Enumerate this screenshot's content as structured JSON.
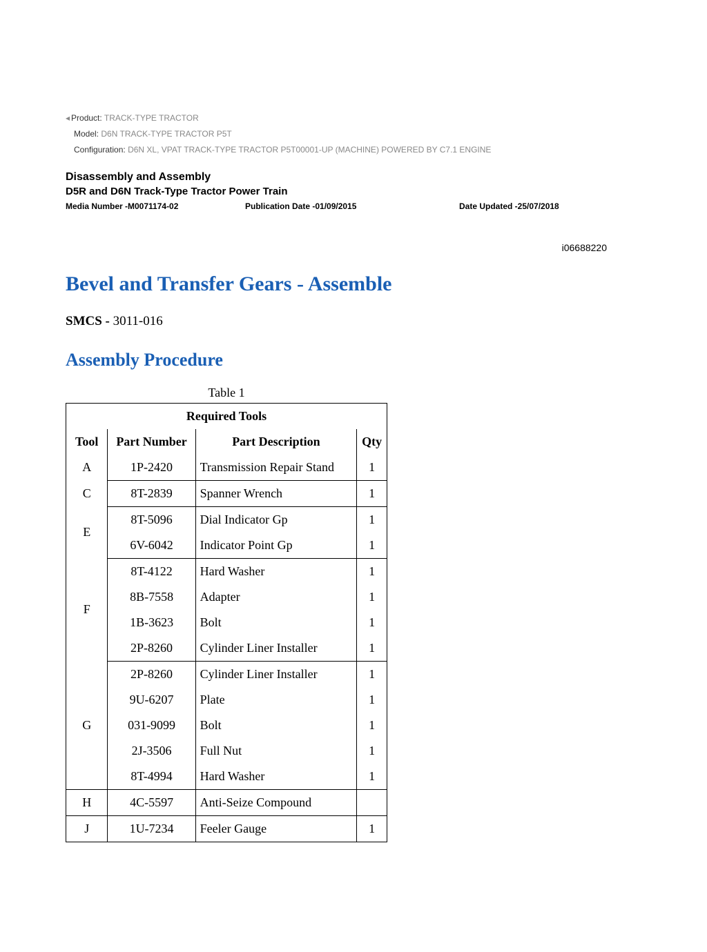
{
  "product_info": {
    "product_label": "Product:",
    "product_value": "TRACK-TYPE TRACTOR",
    "model_label": "Model:",
    "model_value": "D6N TRACK-TYPE TRACTOR P5T",
    "config_label": "Configuration:",
    "config_value": "D6N XL, VPAT TRACK-TYPE TRACTOR P5T00001-UP (MACHINE) POWERED BY C7.1 ENGINE"
  },
  "header": {
    "section_title": "Disassembly and Assembly",
    "section_subtitle": "D5R and D6N Track-Type Tractor Power Train",
    "media_number": "Media Number -M0071174-02",
    "publication_date": "Publication Date -01/09/2015",
    "date_updated": "Date Updated -25/07/2018",
    "doc_id": "i06688220"
  },
  "page": {
    "title": "Bevel and Transfer Gears - Assemble",
    "smcs_label": "SMCS - ",
    "smcs_value": "3011-016",
    "procedure_title": "Assembly Procedure"
  },
  "table": {
    "caption": "Table 1",
    "title": "Required Tools",
    "columns": [
      "Tool",
      "Part Number",
      "Part Description",
      "Qty"
    ],
    "rows": [
      {
        "tool": "A",
        "part": "1P-2420",
        "desc": "Transmission Repair Stand",
        "qty": "1",
        "group_start": true,
        "group_end": true
      },
      {
        "tool": "C",
        "part": "8T-2839",
        "desc": "Spanner Wrench",
        "qty": "1",
        "group_start": true,
        "group_end": true
      },
      {
        "tool": "E",
        "part": "8T-5096",
        "desc": "Dial Indicator Gp",
        "qty": "1",
        "group_start": true,
        "group_end": false,
        "span": 2
      },
      {
        "tool": "",
        "part": "6V-6042",
        "desc": "Indicator Point Gp",
        "qty": "1",
        "group_start": false,
        "group_end": true
      },
      {
        "tool": "F",
        "part": "8T-4122",
        "desc": "Hard Washer",
        "qty": "1",
        "group_start": true,
        "group_end": false,
        "span": 4
      },
      {
        "tool": "",
        "part": "8B-7558",
        "desc": "Adapter",
        "qty": "1",
        "group_start": false,
        "group_end": false
      },
      {
        "tool": "",
        "part": "1B-3623",
        "desc": "Bolt",
        "qty": "1",
        "group_start": false,
        "group_end": false
      },
      {
        "tool": "",
        "part": "2P-8260",
        "desc": "Cylinder Liner Installer",
        "qty": "1",
        "group_start": false,
        "group_end": true
      },
      {
        "tool": "G",
        "part": "2P-8260",
        "desc": "Cylinder Liner Installer",
        "qty": "1",
        "group_start": true,
        "group_end": false,
        "span": 5
      },
      {
        "tool": "",
        "part": "9U-6207",
        "desc": "Plate",
        "qty": "1",
        "group_start": false,
        "group_end": false
      },
      {
        "tool": "",
        "part": "031-9099",
        "desc": "Bolt",
        "qty": "1",
        "group_start": false,
        "group_end": false
      },
      {
        "tool": "",
        "part": "2J-3506",
        "desc": "Full Nut",
        "qty": "1",
        "group_start": false,
        "group_end": false
      },
      {
        "tool": "",
        "part": "8T-4994",
        "desc": "Hard Washer",
        "qty": "1",
        "group_start": false,
        "group_end": true
      },
      {
        "tool": "H",
        "part": "4C-5597",
        "desc": "Anti-Seize Compound",
        "qty": "",
        "group_start": true,
        "group_end": true,
        "standalone": true
      },
      {
        "tool": "J",
        "part": "1U-7234",
        "desc": "Feeler Gauge",
        "qty": "1",
        "group_start": true,
        "group_end": true,
        "standalone": true
      }
    ]
  }
}
